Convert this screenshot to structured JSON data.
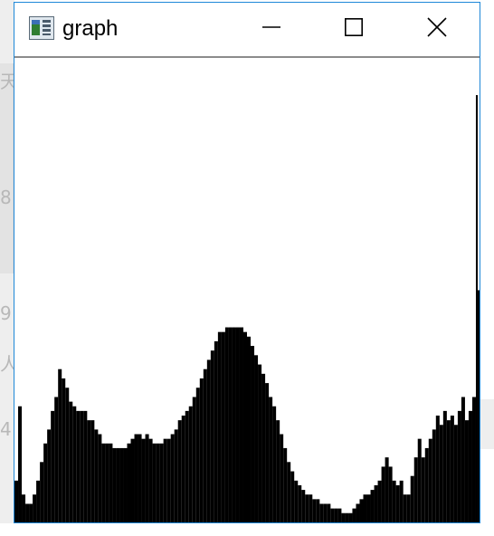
{
  "window": {
    "title": "graph"
  },
  "icons": {
    "app": "app-window-icon",
    "minimize": "minimize-icon",
    "maximize": "maximize-icon",
    "close": "close-icon"
  },
  "colors": {
    "frame_accent": "#1e87d8",
    "plot_fill": "#000000",
    "plot_background": "#ffffff"
  },
  "background_glyphs": [
    "天",
    "8",
    "9",
    "人",
    "4"
  ],
  "chart_data": {
    "type": "area",
    "title": "",
    "xlabel": "",
    "ylabel": "",
    "grid": false,
    "legend": "none",
    "xlim": [
      0,
      255
    ],
    "ylim": [
      0,
      1
    ],
    "x": [
      0,
      2,
      4,
      6,
      8,
      10,
      12,
      14,
      16,
      18,
      20,
      22,
      24,
      26,
      28,
      30,
      32,
      34,
      36,
      38,
      40,
      42,
      44,
      46,
      48,
      50,
      52,
      54,
      56,
      58,
      60,
      62,
      64,
      66,
      68,
      70,
      72,
      74,
      76,
      78,
      80,
      82,
      84,
      86,
      88,
      90,
      92,
      94,
      96,
      98,
      100,
      102,
      104,
      106,
      108,
      110,
      112,
      114,
      116,
      118,
      120,
      122,
      124,
      126,
      128,
      130,
      132,
      134,
      136,
      138,
      140,
      142,
      144,
      146,
      148,
      150,
      152,
      154,
      156,
      158,
      160,
      162,
      164,
      166,
      168,
      170,
      172,
      174,
      176,
      178,
      180,
      182,
      184,
      186,
      188,
      190,
      192,
      194,
      196,
      198,
      200,
      202,
      204,
      206,
      208,
      210,
      212,
      214,
      216,
      218,
      220,
      222,
      224,
      226,
      228,
      230,
      232,
      234,
      236,
      238,
      240,
      242,
      244,
      246,
      248,
      250,
      252,
      254,
      255
    ],
    "values": [
      0.09,
      0.25,
      0.06,
      0.04,
      0.04,
      0.06,
      0.09,
      0.13,
      0.17,
      0.2,
      0.24,
      0.27,
      0.33,
      0.31,
      0.29,
      0.26,
      0.25,
      0.24,
      0.24,
      0.24,
      0.22,
      0.22,
      0.2,
      0.19,
      0.17,
      0.17,
      0.17,
      0.16,
      0.16,
      0.16,
      0.16,
      0.17,
      0.18,
      0.19,
      0.19,
      0.18,
      0.19,
      0.18,
      0.17,
      0.17,
      0.17,
      0.18,
      0.18,
      0.19,
      0.2,
      0.22,
      0.23,
      0.24,
      0.25,
      0.27,
      0.29,
      0.31,
      0.33,
      0.35,
      0.37,
      0.39,
      0.41,
      0.41,
      0.42,
      0.42,
      0.42,
      0.42,
      0.42,
      0.41,
      0.4,
      0.38,
      0.36,
      0.34,
      0.32,
      0.3,
      0.27,
      0.25,
      0.22,
      0.19,
      0.16,
      0.13,
      0.11,
      0.09,
      0.08,
      0.07,
      0.06,
      0.06,
      0.05,
      0.05,
      0.04,
      0.04,
      0.04,
      0.03,
      0.03,
      0.03,
      0.02,
      0.02,
      0.02,
      0.03,
      0.04,
      0.05,
      0.06,
      0.06,
      0.07,
      0.08,
      0.09,
      0.12,
      0.14,
      0.12,
      0.09,
      0.08,
      0.09,
      0.06,
      0.06,
      0.1,
      0.14,
      0.18,
      0.14,
      0.16,
      0.18,
      0.2,
      0.23,
      0.21,
      0.24,
      0.22,
      0.23,
      0.21,
      0.24,
      0.27,
      0.22,
      0.24,
      0.27,
      0.92,
      0.5
    ]
  }
}
